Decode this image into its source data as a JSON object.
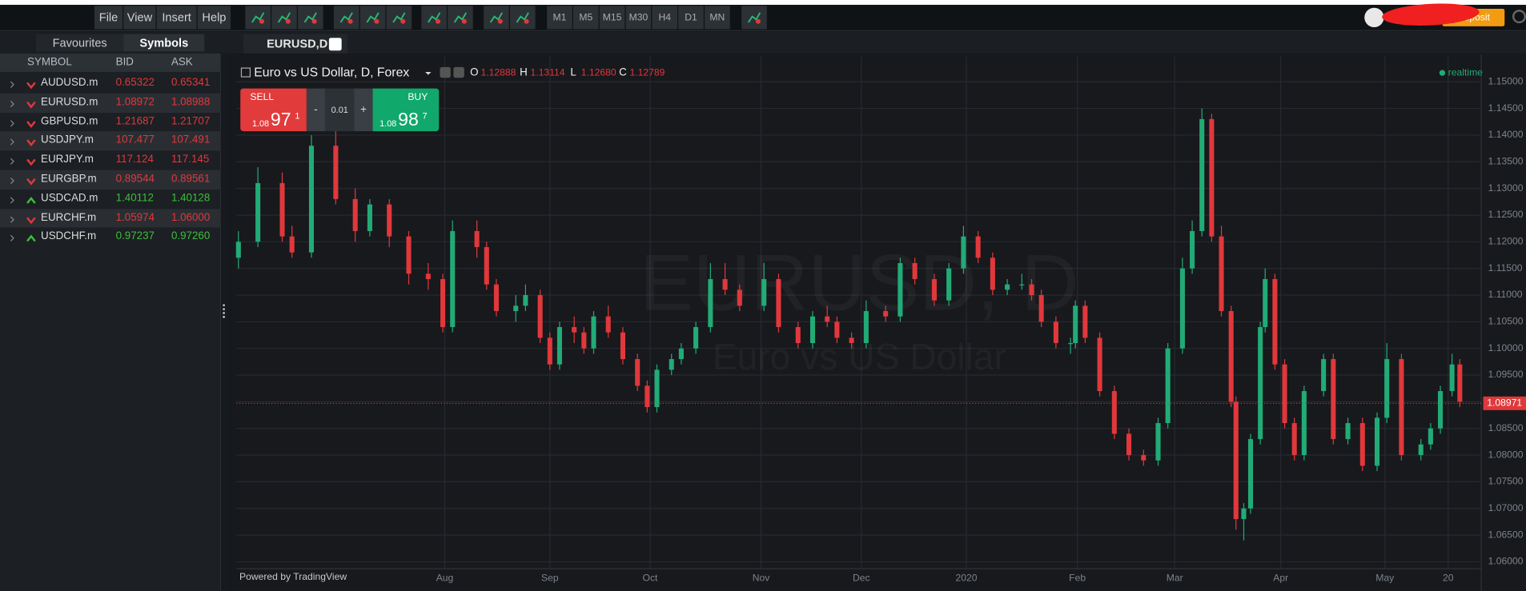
{
  "toolbar": {
    "menu": [
      "File",
      "View",
      "Insert",
      "Help"
    ],
    "timeframes": [
      "M1",
      "M5",
      "M15",
      "M30",
      "H4",
      "D1",
      "MN"
    ],
    "deposit": "Deposit"
  },
  "sidebar": {
    "tabs": [
      "Favourites",
      "Symbols"
    ],
    "columns": [
      "SYMBOL",
      "BID",
      "ASK"
    ],
    "rows": [
      {
        "symbol": "AUDUSD.m",
        "bid": "0.65322",
        "ask": "0.65341",
        "direction": "down"
      },
      {
        "symbol": "EURUSD.m",
        "bid": "1.08972",
        "ask": "1.08988",
        "direction": "down"
      },
      {
        "symbol": "GBPUSD.m",
        "bid": "1.21687",
        "ask": "1.21707",
        "direction": "down"
      },
      {
        "symbol": "USDJPY.m",
        "bid": "107.477",
        "ask": "107.491",
        "direction": "down"
      },
      {
        "symbol": "EURJPY.m",
        "bid": "117.124",
        "ask": "117.145",
        "direction": "down"
      },
      {
        "symbol": "EURGBP.m",
        "bid": "0.89544",
        "ask": "0.89561",
        "direction": "down"
      },
      {
        "symbol": "USDCAD.m",
        "bid": "1.40112",
        "ask": "1.40128",
        "direction": "up"
      },
      {
        "symbol": "EURCHF.m",
        "bid": "1.05974",
        "ask": "1.06000",
        "direction": "down"
      },
      {
        "symbol": "USDCHF.m",
        "bid": "0.97237",
        "ask": "0.97260",
        "direction": "up"
      }
    ]
  },
  "chart_tab": "EURUSD,D",
  "chart_header": {
    "title": "Euro vs US Dollar, D, Forex",
    "status": "realtime",
    "ohlc": [
      {
        "label": "O",
        "value": "1.12888"
      },
      {
        "label": "H",
        "value": "1.13114"
      },
      {
        "label": "L",
        "value": "1.12680"
      },
      {
        "label": "C",
        "value": "1.12789"
      }
    ]
  },
  "trade": {
    "sell": "SELL",
    "buy": "BUY",
    "minus": "-",
    "plus": "+",
    "lot": "0.01",
    "sell_price": {
      "big": "1.08",
      "pips": "97",
      "frac": "1"
    },
    "buy_price": {
      "big": "1.08",
      "pips": "98",
      "frac": "7"
    }
  },
  "footer": "Powered by TradingView",
  "chart_data": {
    "type": "candlestick",
    "watermark": "EURUSD, D",
    "watermark_sub": "Euro vs US Dollar",
    "up_color": "#22ab76",
    "down_color": "#e0383b",
    "grid": true,
    "x": [
      0.4,
      4.4,
      9.4,
      11.4,
      15.4,
      20.4,
      24.4,
      27.4,
      31.4,
      35.4,
      39.4,
      42.4,
      44.4,
      49.4,
      51.4,
      53.4,
      57.4,
      59.4,
      62.4,
      64.4,
      66.4,
      69.4,
      71.4,
      73.4,
      76.4,
      79.4,
      82.4,
      84.4,
      86.4,
      89.4,
      91.4,
      94.4,
      97.4,
      100.4,
      103.4,
      108.4,
      111.4,
      115.4,
      118.4,
      121.4,
      123.4,
      126.4,
      129.4,
      133.4,
      136.4,
      139.4,
      143.4,
      146.4,
      149.4,
      152.4,
      155.4,
      158.4,
      161.4,
      163.4,
      165.4,
      168.4,
      171.4,
      172.4,
      174.4,
      177.4,
      180.4,
      183.4,
      186.4,
      189.4,
      191.4,
      194.4,
      196.4,
      198.4,
      200.4,
      202.4,
      204.4,
      205.4,
      207.0,
      208.4,
      210.4,
      211.4,
      213.4,
      215.4,
      217.4,
      219.4,
      223.4,
      225.4,
      228.4,
      231.4,
      234.4,
      236.4,
      239.4,
      243.4,
      245.4,
      247.4,
      249.8,
      251.4
    ],
    "open": [
      1.117,
      1.12,
      1.131,
      1.121,
      1.118,
      1.138,
      1.128,
      1.122,
      1.127,
      1.121,
      1.114,
      1.113,
      1.104,
      1.122,
      1.119,
      1.112,
      1.107,
      1.108,
      1.11,
      1.102,
      1.097,
      1.104,
      1.103,
      1.1,
      1.106,
      1.103,
      1.098,
      1.093,
      1.089,
      1.096,
      1.098,
      1.1,
      1.104,
      1.113,
      1.111,
      1.108,
      1.113,
      1.104,
      1.101,
      1.106,
      1.105,
      1.102,
      1.101,
      1.107,
      1.106,
      1.116,
      1.113,
      1.109,
      1.115,
      1.121,
      1.117,
      1.111,
      1.112,
      1.112,
      1.11,
      1.105,
      1.101,
      1.101,
      1.108,
      1.102,
      1.092,
      1.084,
      1.08,
      1.079,
      1.086,
      1.1,
      1.115,
      1.122,
      1.143,
      1.121,
      1.107,
      1.09,
      1.068,
      1.07,
      1.083,
      1.104,
      1.113,
      1.097,
      1.086,
      1.08,
      1.092,
      1.098,
      1.083,
      1.086,
      1.078,
      1.087,
      1.098,
      1.08,
      1.082,
      1.085,
      1.092,
      1.097
    ],
    "high": [
      1.122,
      1.134,
      1.133,
      1.123,
      1.14,
      1.141,
      1.13,
      1.128,
      1.128,
      1.122,
      1.116,
      1.114,
      1.124,
      1.124,
      1.12,
      1.113,
      1.11,
      1.112,
      1.111,
      1.103,
      1.105,
      1.106,
      1.104,
      1.107,
      1.108,
      1.104,
      1.099,
      1.094,
      1.097,
      1.099,
      1.101,
      1.105,
      1.116,
      1.116,
      1.112,
      1.116,
      1.114,
      1.105,
      1.107,
      1.108,
      1.106,
      1.103,
      1.109,
      1.108,
      1.117,
      1.117,
      1.114,
      1.116,
      1.123,
      1.122,
      1.118,
      1.113,
      1.114,
      1.113,
      1.111,
      1.106,
      1.102,
      1.109,
      1.109,
      1.103,
      1.093,
      1.085,
      1.081,
      1.087,
      1.101,
      1.117,
      1.124,
      1.145,
      1.144,
      1.123,
      1.108,
      1.091,
      1.071,
      1.084,
      1.105,
      1.115,
      1.114,
      1.098,
      1.087,
      1.093,
      1.099,
      1.099,
      1.087,
      1.087,
      1.088,
      1.101,
      1.099,
      1.083,
      1.086,
      1.093,
      1.099,
      1.098
    ],
    "low": [
      1.115,
      1.119,
      1.12,
      1.117,
      1.117,
      1.127,
      1.12,
      1.121,
      1.119,
      1.112,
      1.111,
      1.103,
      1.103,
      1.117,
      1.111,
      1.106,
      1.105,
      1.107,
      1.101,
      1.096,
      1.096,
      1.101,
      1.099,
      1.099,
      1.102,
      1.097,
      1.092,
      1.088,
      1.088,
      1.095,
      1.097,
      1.099,
      1.103,
      1.11,
      1.107,
      1.107,
      1.103,
      1.1,
      1.1,
      1.104,
      1.101,
      1.1,
      1.1,
      1.105,
      1.105,
      1.112,
      1.108,
      1.108,
      1.114,
      1.116,
      1.11,
      1.11,
      1.111,
      1.109,
      1.104,
      1.1,
      1.099,
      1.1,
      1.101,
      1.091,
      1.083,
      1.079,
      1.078,
      1.078,
      1.085,
      1.099,
      1.114,
      1.121,
      1.12,
      1.106,
      1.089,
      1.066,
      1.064,
      1.069,
      1.082,
      1.103,
      1.096,
      1.085,
      1.079,
      1.079,
      1.091,
      1.082,
      1.082,
      1.077,
      1.077,
      1.086,
      1.079,
      1.079,
      1.081,
      1.084,
      1.091,
      1.089
    ],
    "close": [
      1.12,
      1.131,
      1.121,
      1.118,
      1.138,
      1.128,
      1.122,
      1.127,
      1.121,
      1.114,
      1.113,
      1.104,
      1.122,
      1.119,
      1.112,
      1.107,
      1.108,
      1.11,
      1.102,
      1.097,
      1.104,
      1.103,
      1.1,
      1.106,
      1.103,
      1.098,
      1.093,
      1.089,
      1.096,
      1.098,
      1.1,
      1.104,
      1.113,
      1.111,
      1.108,
      1.113,
      1.104,
      1.101,
      1.106,
      1.105,
      1.102,
      1.101,
      1.107,
      1.106,
      1.116,
      1.113,
      1.109,
      1.115,
      1.121,
      1.117,
      1.111,
      1.112,
      1.112,
      1.11,
      1.105,
      1.101,
      1.101,
      1.108,
      1.102,
      1.092,
      1.084,
      1.08,
      1.079,
      1.086,
      1.1,
      1.115,
      1.122,
      1.143,
      1.121,
      1.107,
      1.09,
      1.068,
      1.07,
      1.083,
      1.104,
      1.113,
      1.097,
      1.086,
      1.08,
      1.092,
      1.098,
      1.083,
      1.086,
      1.078,
      1.087,
      1.098,
      1.08,
      1.082,
      1.085,
      1.092,
      1.097,
      1.09
    ],
    "last_price": 1.08971,
    "xlim": [
      0,
      255.8
    ],
    "xticks": [
      {
        "value": 42.8,
        "label": "Aug"
      },
      {
        "value": 64.4,
        "label": "Sep"
      },
      {
        "value": 85,
        "label": "Oct"
      },
      {
        "value": 107.8,
        "label": "Nov"
      },
      {
        "value": 128.4,
        "label": "Dec"
      },
      {
        "value": 150,
        "label": "2020"
      },
      {
        "value": 172.8,
        "label": "Feb"
      },
      {
        "value": 192.8,
        "label": "Mar"
      },
      {
        "value": 214.6,
        "label": "Apr"
      },
      {
        "value": 236,
        "label": "May"
      },
      {
        "value": 249,
        "label": "20"
      }
    ],
    "ylim": [
      1.0587,
      1.1533
    ],
    "yticks": [
      {
        "value": 1.06,
        "label": "1.06000"
      },
      {
        "value": 1.065,
        "label": "1.06500"
      },
      {
        "value": 1.07,
        "label": "1.07000"
      },
      {
        "value": 1.075,
        "label": "1.07500"
      },
      {
        "value": 1.08,
        "label": "1.08000"
      },
      {
        "value": 1.085,
        "label": "1.08500"
      },
      {
        "value": 1.09,
        "label": "1.09000"
      },
      {
        "value": 1.095,
        "label": "1.09500"
      },
      {
        "value": 1.1,
        "label": "1.10000"
      },
      {
        "value": 1.105,
        "label": "1.10500"
      },
      {
        "value": 1.11,
        "label": "1.11000"
      },
      {
        "value": 1.115,
        "label": "1.11500"
      },
      {
        "value": 1.12,
        "label": "1.12000"
      },
      {
        "value": 1.125,
        "label": "1.12500"
      },
      {
        "value": 1.13,
        "label": "1.13000"
      },
      {
        "value": 1.135,
        "label": "1.13500"
      },
      {
        "value": 1.14,
        "label": "1.14000"
      },
      {
        "value": 1.145,
        "label": "1.14500"
      },
      {
        "value": 1.15,
        "label": "1.15000"
      }
    ]
  }
}
